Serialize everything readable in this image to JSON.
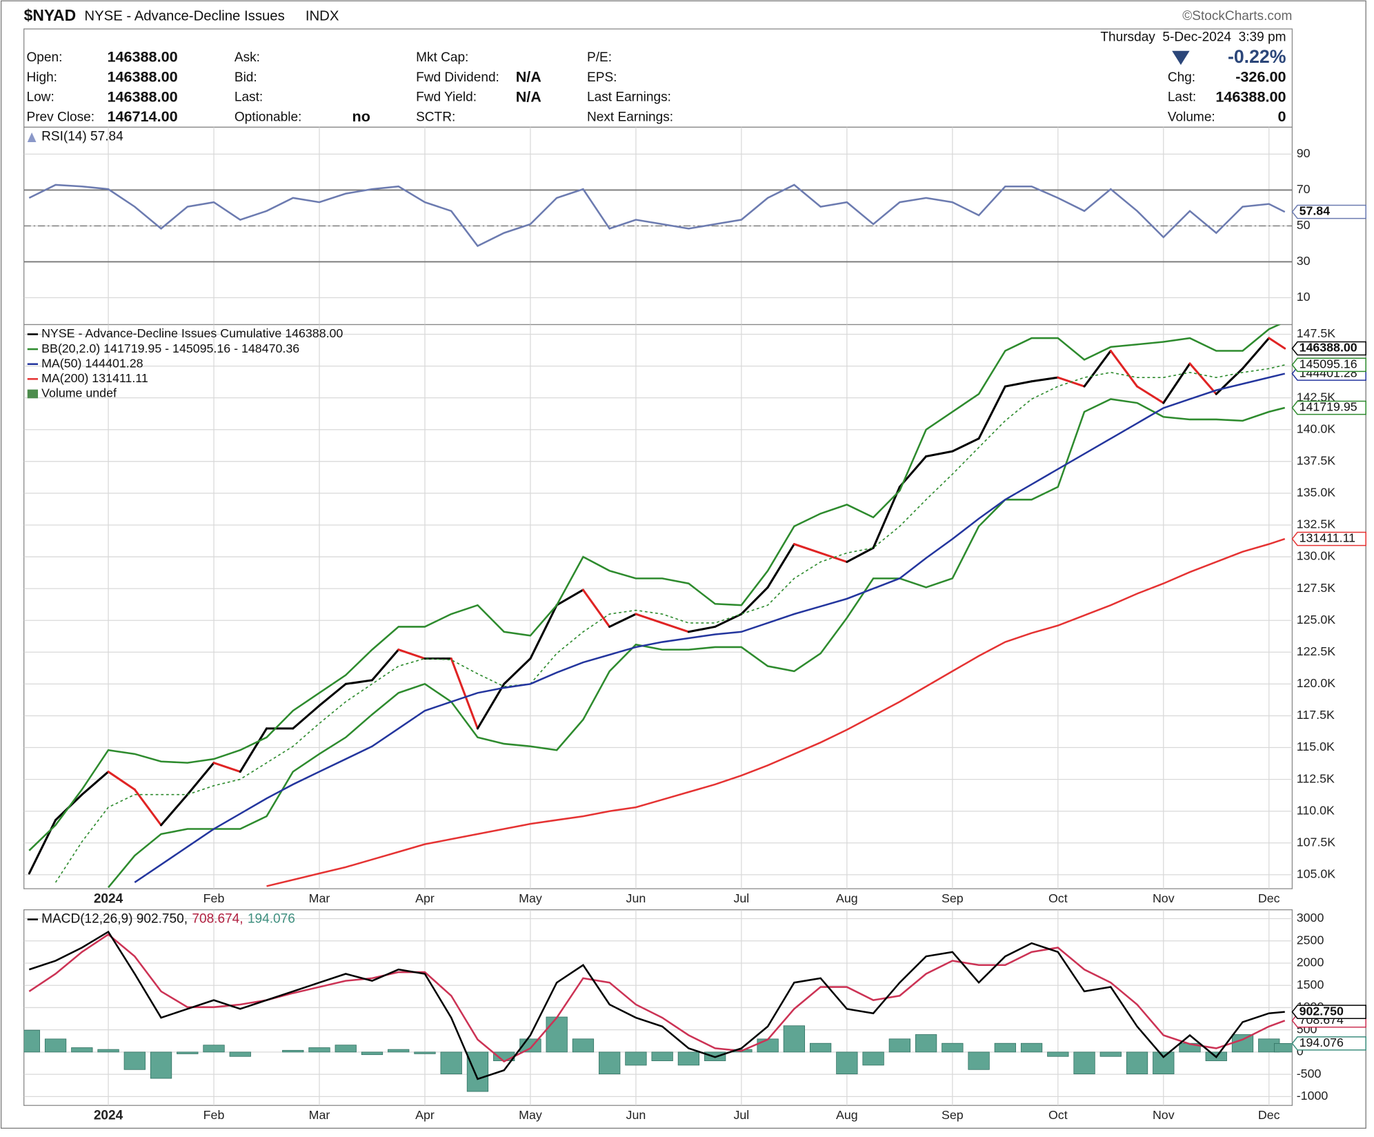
{
  "header": {
    "symbol": "$NYAD",
    "name": "NYSE - Advance-Decline Issues",
    "exchange": "INDX",
    "brand": "©StockCharts.com",
    "date": "Thursday  5-Dec-2024  3:39 pm",
    "change_pct": "-0.22%"
  },
  "quote": {
    "columns": [
      [
        {
          "label": "Open:",
          "value": "146388.00"
        },
        {
          "label": "High:",
          "value": "146388.00"
        },
        {
          "label": "Low:",
          "value": "146388.00"
        },
        {
          "label": "Prev Close:",
          "value": "146714.00"
        }
      ],
      [
        {
          "label": "Ask:"
        },
        {
          "label": "Bid:"
        },
        {
          "label": "Last:"
        },
        {
          "label": "Optionable:",
          "value": "no"
        }
      ],
      [
        {
          "label": "Mkt Cap:"
        },
        {
          "label": "Fwd Dividend:",
          "value": "N/A"
        },
        {
          "label": "Fwd Yield:",
          "value": "N/A"
        },
        {
          "label": "SCTR:"
        }
      ],
      [
        {
          "label": "P/E:"
        },
        {
          "label": "EPS:"
        },
        {
          "label": "Last Earnings:"
        },
        {
          "label": "Next Earnings:"
        }
      ]
    ],
    "right": [
      {
        "label": "Chg:",
        "value": "-326.00"
      },
      {
        "label": "Last:",
        "value": "146388.00"
      },
      {
        "label": "Volume:",
        "value": "0"
      }
    ]
  },
  "chart_data": [
    {
      "type": "line",
      "title": "RSI(14) 57.84",
      "x": [
        -0.75,
        -0.5,
        -0.25,
        0,
        0.25,
        0.5,
        0.75,
        1,
        1.25,
        1.5,
        1.75,
        2,
        2.25,
        2.5,
        2.75,
        3,
        3.25,
        3.5,
        3.75,
        4,
        4.25,
        4.5,
        4.75,
        5,
        5.25,
        5.5,
        5.75,
        6,
        6.25,
        6.5,
        6.75,
        7,
        7.25,
        7.5,
        7.75,
        8,
        8.25,
        8.5,
        8.75,
        9,
        9.25,
        9.5,
        9.75,
        10,
        10.25,
        10.5,
        10.75,
        11,
        11.15
      ],
      "xlim": [
        -0.8,
        11.22
      ],
      "xticks": [
        0,
        1,
        2,
        3,
        4,
        5,
        6,
        7,
        8,
        9,
        10,
        11
      ],
      "ylim": [
        -5,
        105
      ],
      "yticks": [
        10,
        30,
        50,
        70,
        90
      ],
      "grid": true,
      "ref_lines": [
        30,
        70
      ],
      "mid_line": 50,
      "series": [
        {
          "color": "#6c7bb0",
          "values": [
            65.6,
            72.9,
            72,
            70.5,
            60.7,
            48.5,
            60.7,
            63.2,
            53.4,
            58.3,
            65.6,
            63.2,
            68,
            70.5,
            72,
            63.2,
            58.3,
            38.8,
            46.1,
            51,
            65.6,
            70.5,
            48.5,
            53.4,
            51,
            48.5,
            51,
            53.4,
            65.6,
            72.9,
            60.7,
            63.2,
            51,
            63.2,
            65.6,
            63.2,
            55.9,
            72,
            72,
            65.6,
            58.3,
            70.5,
            58.3,
            43.7,
            58.3,
            46.1,
            60.7,
            62.2,
            57.84
          ]
        }
      ],
      "tags": [
        {
          "value": 57.84,
          "label": "57.84",
          "color": "#6c7bb0"
        }
      ]
    },
    {
      "type": "line",
      "x": [
        -0.75,
        -0.5,
        -0.25,
        0,
        0.25,
        0.5,
        0.75,
        1,
        1.25,
        1.5,
        1.75,
        2,
        2.25,
        2.5,
        2.75,
        3,
        3.25,
        3.5,
        3.75,
        4,
        4.25,
        4.5,
        4.75,
        5,
        5.25,
        5.5,
        5.75,
        6,
        6.25,
        6.5,
        6.75,
        7,
        7.25,
        7.5,
        7.75,
        8,
        8.25,
        8.5,
        8.75,
        9,
        9.25,
        9.5,
        9.75,
        10,
        10.25,
        10.5,
        10.75,
        11,
        11.15
      ],
      "xlim": [
        -0.8,
        11.22
      ],
      "xticks": [
        {
          "value": 0,
          "label": "2024"
        },
        {
          "value": 1,
          "label": "Feb"
        },
        {
          "value": 2,
          "label": "Mar"
        },
        {
          "value": 3,
          "label": "Apr"
        },
        {
          "value": 4,
          "label": "May"
        },
        {
          "value": 5,
          "label": "Jun"
        },
        {
          "value": 6,
          "label": "Jul"
        },
        {
          "value": 7,
          "label": "Aug"
        },
        {
          "value": 8,
          "label": "Sep"
        },
        {
          "value": 9,
          "label": "Oct"
        },
        {
          "value": 10,
          "label": "Nov"
        },
        {
          "value": 11,
          "label": "Dec"
        }
      ],
      "ylim": [
        103900,
        148260
      ],
      "yticks": [
        {
          "value": 105000,
          "label": "105.0K"
        },
        {
          "value": 107500,
          "label": "107.5K"
        },
        {
          "value": 110000,
          "label": "110.0K"
        },
        {
          "value": 112500,
          "label": "112.5K"
        },
        {
          "value": 115000,
          "label": "115.0K"
        },
        {
          "value": 117500,
          "label": "117.5K"
        },
        {
          "value": 120000,
          "label": "120.0K"
        },
        {
          "value": 122500,
          "label": "122.5K"
        },
        {
          "value": 125000,
          "label": "125.0K"
        },
        {
          "value": 127500,
          "label": "127.5K"
        },
        {
          "value": 130000,
          "label": "130.0K"
        },
        {
          "value": 132500,
          "label": "132.5K"
        },
        {
          "value": 135000,
          "label": "135.0K"
        },
        {
          "value": 137500,
          "label": "137.5K"
        },
        {
          "value": 140000,
          "label": "140.0K"
        },
        {
          "value": 142500,
          "label": "142.5K"
        },
        {
          "value": 145000,
          "label": "145.0K"
        },
        {
          "value": 147500,
          "label": "147.5K"
        }
      ],
      "grid": true,
      "series": [
        {
          "name": "NYSE - Advance-Decline Issues Cumulative 146388.00",
          "color": "#000000",
          "down_color": "#e02424",
          "style": "updown",
          "values": [
            105100,
            109300,
            111300,
            113100,
            111700,
            108900,
            111300,
            113800,
            113100,
            116500,
            116500,
            118300,
            120000,
            120300,
            122700,
            122000,
            122000,
            116500,
            120000,
            122000,
            126200,
            127400,
            124500,
            125500,
            124800,
            124100,
            124500,
            125500,
            127600,
            131000,
            130300,
            129600,
            130700,
            135500,
            137900,
            138300,
            139300,
            143400,
            143800,
            144100,
            143400,
            146200,
            143400,
            142100,
            145200,
            142800,
            144800,
            147200,
            146388
          ]
        },
        {
          "name": "BB(20,2.0) 141719.95 - 145095.16 - 148470.36",
          "color": "#2e8b2e",
          "type": "band",
          "upper": [
            106900,
            108900,
            111700,
            114800,
            114500,
            113900,
            113800,
            114100,
            114800,
            115800,
            117900,
            119300,
            120700,
            122700,
            124500,
            124500,
            125500,
            126200,
            124100,
            123800,
            126200,
            130000,
            128900,
            128300,
            128300,
            127900,
            126300,
            126200,
            128900,
            132400,
            133400,
            134100,
            133100,
            135200,
            140000,
            141400,
            142800,
            146200,
            147200,
            147200,
            145500,
            146500,
            146700,
            146900,
            147200,
            146200,
            146200,
            147900,
            148470.36
          ],
          "middle": [
            null,
            104400,
            107600,
            110300,
            111300,
            111300,
            111300,
            112000,
            112500,
            113800,
            115100,
            116900,
            118600,
            120000,
            121400,
            122000,
            121900,
            120800,
            119800,
            120000,
            122400,
            124100,
            125500,
            125800,
            125500,
            124800,
            124800,
            125500,
            126200,
            128300,
            129600,
            130300,
            130700,
            132400,
            134500,
            136500,
            138600,
            140700,
            142400,
            143400,
            144100,
            144500,
            144100,
            144100,
            144500,
            144100,
            144500,
            144800,
            145095.16
          ],
          "lower": [
            null,
            null,
            null,
            104000,
            106500,
            108200,
            108600,
            108600,
            108600,
            109600,
            113100,
            114500,
            115800,
            117600,
            119300,
            120000,
            118600,
            115800,
            115300,
            115100,
            114800,
            117200,
            121000,
            123100,
            122700,
            122700,
            122900,
            122900,
            121400,
            121000,
            122400,
            125200,
            128300,
            128300,
            127600,
            128300,
            132400,
            134500,
            134500,
            135500,
            141400,
            142400,
            142100,
            141000,
            140800,
            140800,
            140700,
            141400,
            141719.95
          ]
        },
        {
          "name": "MA(50) 144401.28",
          "color": "#24369e",
          "values": [
            null,
            null,
            null,
            null,
            104400,
            105800,
            107200,
            108600,
            109800,
            111000,
            112100,
            113100,
            114100,
            115100,
            116500,
            117900,
            118600,
            119300,
            119700,
            120000,
            120900,
            121700,
            122300,
            122900,
            123300,
            123600,
            123900,
            124100,
            124800,
            125500,
            126100,
            126700,
            127500,
            128300,
            129900,
            131400,
            133000,
            134500,
            135700,
            136900,
            138100,
            139300,
            140500,
            141700,
            142400,
            143100,
            143600,
            144100,
            144401.28
          ]
        },
        {
          "name": "MA(200) 131411.11",
          "color": "#e53333",
          "values": [
            null,
            null,
            null,
            null,
            null,
            null,
            null,
            null,
            null,
            104100,
            104600,
            105100,
            105600,
            106200,
            106800,
            107400,
            107800,
            108200,
            108600,
            109000,
            109300,
            109600,
            110000,
            110300,
            110900,
            111500,
            112100,
            112800,
            113600,
            114500,
            115400,
            116400,
            117500,
            118600,
            119800,
            121000,
            122200,
            123300,
            124000,
            124600,
            125400,
            126200,
            127100,
            127900,
            128800,
            129600,
            130400,
            131000,
            131411.11
          ]
        }
      ],
      "volume_note": "Volume undef",
      "tags": [
        {
          "value": 131411.11,
          "label": "131411.11",
          "color": "#e53333"
        },
        {
          "value": 141719.95,
          "label": "141719.95",
          "color": "#2e8b2e"
        },
        {
          "value": 144401.28,
          "label": "144401.28",
          "color": "#24369e"
        },
        {
          "value": 145095.16,
          "label": "145095.16",
          "color": "#2e8b2e"
        },
        {
          "value": 146388,
          "label": "146388.00",
          "color": "#000000"
        }
      ]
    },
    {
      "type": "line",
      "title_parts": [
        {
          "text": "MACD(12,26,9) 902.750,",
          "color": "#111111"
        },
        {
          "text": "708.674,",
          "color": "#b02040"
        },
        {
          "text": "194.076",
          "color": "#3f8f7f"
        }
      ],
      "x": [
        -0.75,
        -0.5,
        -0.25,
        0,
        0.25,
        0.5,
        0.75,
        1,
        1.25,
        1.5,
        1.75,
        2,
        2.25,
        2.5,
        2.75,
        3,
        3.25,
        3.5,
        3.75,
        4,
        4.25,
        4.5,
        4.75,
        5,
        5.25,
        5.5,
        5.75,
        6,
        6.25,
        6.5,
        6.75,
        7,
        7.25,
        7.5,
        7.75,
        8,
        8.25,
        8.5,
        8.75,
        9,
        9.25,
        9.5,
        9.75,
        10,
        10.25,
        10.5,
        10.75,
        11,
        11.15
      ],
      "xlim": [
        -0.8,
        11.22
      ],
      "xticks": [
        {
          "value": 0,
          "label": "2024"
        },
        {
          "value": 1,
          "label": "Feb"
        },
        {
          "value": 2,
          "label": "Mar"
        },
        {
          "value": 3,
          "label": "Apr"
        },
        {
          "value": 4,
          "label": "May"
        },
        {
          "value": 5,
          "label": "Jun"
        },
        {
          "value": 6,
          "label": "Jul"
        },
        {
          "value": 7,
          "label": "Aug"
        },
        {
          "value": 8,
          "label": "Sep"
        },
        {
          "value": 9,
          "label": "Oct"
        },
        {
          "value": 10,
          "label": "Nov"
        },
        {
          "value": 11,
          "label": "Dec"
        }
      ],
      "ylim": [
        -1200,
        3200
      ],
      "yticks": [
        -1000,
        -500,
        0,
        500,
        1000,
        1500,
        2000,
        2500,
        3000
      ],
      "grid": true,
      "series": [
        {
          "type": "bar",
          "color": "#5fa593",
          "values": [
            492,
            295,
            99,
            59,
            -394,
            -592,
            -40,
            157,
            -99,
            0,
            40,
            99,
            158,
            -59,
            59,
            -39,
            -493,
            -887,
            -197,
            295,
            789,
            296,
            -493,
            -296,
            -197,
            -295,
            -197,
            59,
            295,
            592,
            197,
            -493,
            -295,
            296,
            394,
            197,
            -394,
            197,
            197,
            -99,
            -492,
            -99,
            -493,
            -492,
            197,
            -197,
            394,
            296,
            194.076
          ]
        },
        {
          "color": "#cc3355",
          "values": [
            1365,
            1759,
            2251,
            2645,
            2153,
            1365,
            1010,
            1010,
            1069,
            1167,
            1325,
            1463,
            1601,
            1660,
            1798,
            1798,
            1266,
            281,
            -212,
            84,
            773,
            1660,
            1562,
            1069,
            773,
            379,
            84,
            25,
            281,
            970,
            1463,
            1463,
            1167,
            1266,
            1759,
            2054,
            1956,
            1956,
            2251,
            2350,
            1857,
            1562,
            1069,
            379,
            182,
            84,
            281,
            576,
            708.674
          ]
        },
        {
          "color": "#000000",
          "values": [
            1857,
            2054,
            2350,
            2704,
            1759,
            773,
            970,
            1167,
            970,
            1167,
            1365,
            1562,
            1759,
            1601,
            1857,
            1759,
            773,
            -606,
            -409,
            379,
            1562,
            1956,
            1069,
            773,
            576,
            84,
            -113,
            84,
            576,
            1562,
            1660,
            970,
            872,
            1562,
            2153,
            2251,
            1562,
            2153,
            2448,
            2251,
            1365,
            1463,
            576,
            -113,
            379,
            -113,
            675,
            872,
            902.75
          ]
        }
      ],
      "tags": [
        {
          "value": 194.076,
          "label": "194.076",
          "color": "#3f8f7f"
        },
        {
          "value": 708.674,
          "label": "708.674",
          "color": "#cc3355"
        },
        {
          "value": 902.75,
          "label": "902.750",
          "color": "#000000"
        }
      ]
    }
  ]
}
